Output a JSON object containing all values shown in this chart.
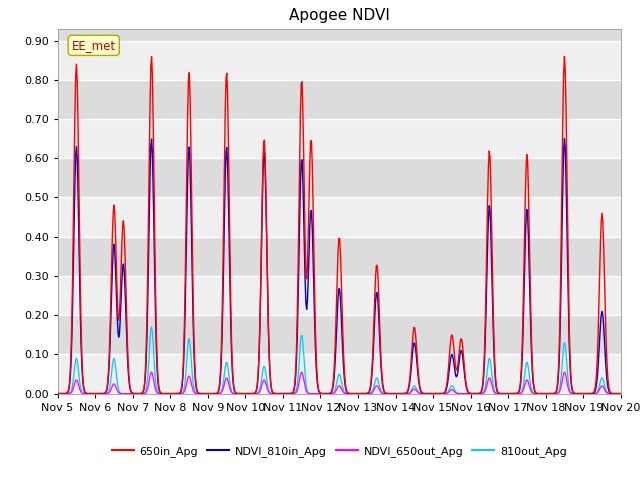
{
  "title": "Apogee NDVI",
  "annotation": "EE_met",
  "ylim": [
    0.0,
    0.93
  ],
  "yticks": [
    0.0,
    0.1,
    0.2,
    0.3,
    0.4,
    0.5,
    0.6,
    0.7,
    0.8,
    0.9
  ],
  "xlabel_ticks": [
    "Nov 5",
    "Nov 6",
    "Nov 7",
    "Nov 8",
    "Nov 9",
    "Nov 10",
    "Nov 11",
    "Nov 12",
    "Nov 13",
    "Nov 14",
    "Nov 15",
    "Nov 16",
    "Nov 17",
    "Nov 18",
    "Nov 19",
    "Nov 20"
  ],
  "legend": [
    "650in_Apg",
    "NDVI_810in_Apg",
    "NDVI_650out_Apg",
    "810out_Apg"
  ],
  "legend_colors": [
    "#ff0000",
    "#0000cc",
    "#ff00ff",
    "#00ccff"
  ],
  "bg_color": "#dcdcdc",
  "title_fontsize": 11,
  "n_days": 15,
  "pts_per_day": 48,
  "red_peaks": [
    0.5,
    1.5,
    2.5,
    3.5,
    4.5,
    5.5,
    6.5,
    7.5,
    8.5,
    9.5,
    10.5,
    11.5,
    12.5,
    13.5,
    14.5
  ],
  "red_vals": [
    0.84,
    0.48,
    0.86,
    0.82,
    0.82,
    0.65,
    0.8,
    0.4,
    0.33,
    0.17,
    0.15,
    0.62,
    0.61,
    0.86,
    0.46
  ],
  "red_peaks2": [
    0.75,
    1.75,
    6.75,
    10.75
  ],
  "red_vals2": [
    0.0,
    0.44,
    0.65,
    0.14
  ],
  "blue_peaks": [
    0.5,
    1.5,
    2.5,
    3.5,
    4.5,
    5.5,
    6.5,
    7.5,
    8.5,
    9.5,
    10.5,
    11.5,
    12.5,
    13.5,
    14.5
  ],
  "blue_vals": [
    0.63,
    0.38,
    0.65,
    0.63,
    0.63,
    0.62,
    0.6,
    0.27,
    0.26,
    0.13,
    0.1,
    0.48,
    0.47,
    0.65,
    0.21
  ],
  "blue_peaks2": [
    1.75,
    6.75,
    10.75
  ],
  "blue_vals2": [
    0.33,
    0.47,
    0.11
  ],
  "mag_peaks": [
    0.5,
    1.5,
    2.5,
    3.5,
    4.5,
    5.5,
    6.5,
    7.5,
    8.5,
    9.5,
    10.5,
    11.5,
    12.5,
    13.5,
    14.5
  ],
  "mag_vals": [
    0.035,
    0.025,
    0.055,
    0.045,
    0.04,
    0.035,
    0.055,
    0.02,
    0.02,
    0.012,
    0.01,
    0.04,
    0.035,
    0.055,
    0.02
  ],
  "cyn_peaks": [
    0.5,
    1.5,
    2.5,
    3.5,
    4.5,
    5.5,
    6.5,
    7.5,
    8.5,
    9.5,
    10.5,
    11.5,
    12.5,
    13.5,
    14.5
  ],
  "cyn_vals": [
    0.09,
    0.09,
    0.17,
    0.14,
    0.08,
    0.07,
    0.15,
    0.05,
    0.04,
    0.02,
    0.02,
    0.09,
    0.08,
    0.13,
    0.04
  ]
}
